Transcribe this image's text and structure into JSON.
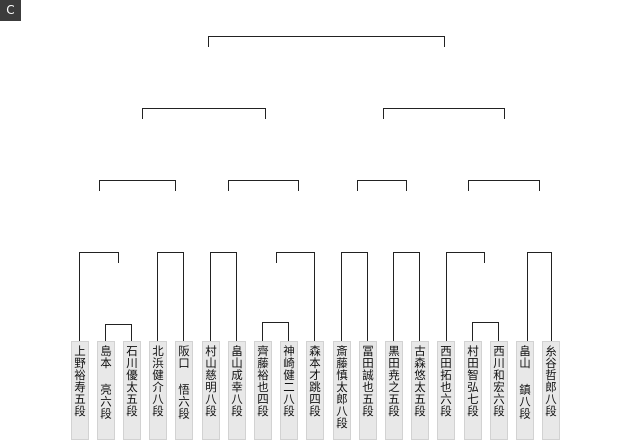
{
  "corner_tab": "C",
  "players": [
    {
      "label": "上野裕寿五段"
    },
    {
      "label": "島本 亮六段"
    },
    {
      "label": "石川優太五段"
    },
    {
      "label": "北浜健介八段"
    },
    {
      "label": "阪口 悟六段"
    },
    {
      "label": "村山慈明八段"
    },
    {
      "label": "畠山成幸八段"
    },
    {
      "label": "齊藤裕也四段"
    },
    {
      "label": "神崎健二八段"
    },
    {
      "label": "森本才跳四段"
    },
    {
      "label": "斎藤慎太郎八段"
    },
    {
      "label": "冨田誠也五段"
    },
    {
      "label": "黒田尭之五段"
    },
    {
      "label": "古森悠太五段"
    },
    {
      "label": "西田拓也六段"
    },
    {
      "label": "村田智弘七段"
    },
    {
      "label": "西川和宏六段"
    },
    {
      "label": "畠山 鎮八段"
    },
    {
      "label": "糸谷哲郎八段"
    }
  ]
}
